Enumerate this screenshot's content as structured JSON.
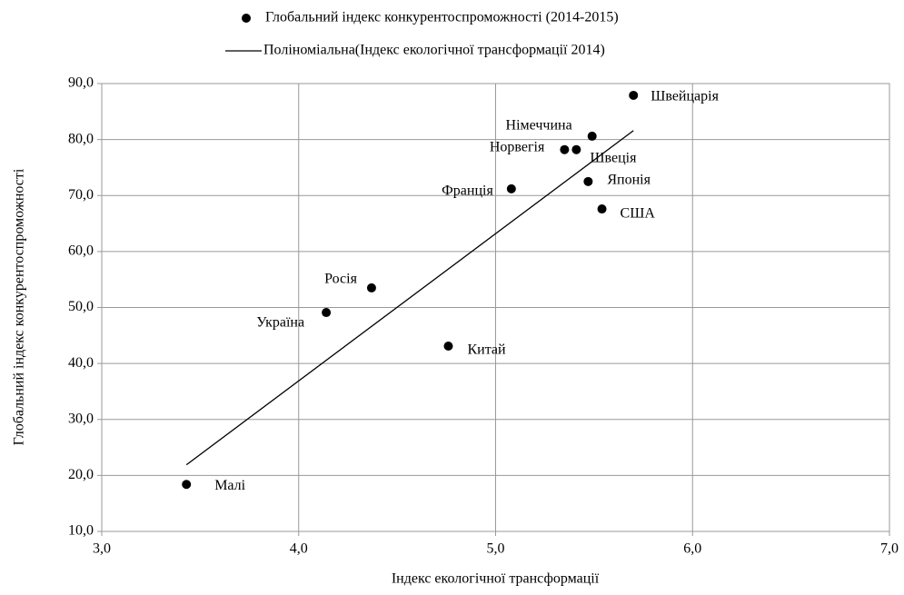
{
  "chart_data": {
    "type": "scatter",
    "xlabel": "Індекс екологічної трансформації",
    "ylabel": "Глобальний індекс конкурентоспроможності",
    "series": [
      {
        "name": "Глобальний індекс конкурентоспроможності (2014-2015)",
        "type": "scatter",
        "color": "#000000",
        "labels": [
          "Малі",
          "Україна",
          "Росія",
          "Китай",
          "Франція",
          "Норвегія",
          "Швеція",
          "Німеччина",
          "Японія",
          "США",
          "Швейцарія"
        ],
        "x": [
          3.43,
          4.14,
          4.37,
          4.76,
          5.08,
          5.35,
          5.41,
          5.49,
          5.47,
          5.54,
          5.7
        ],
        "values": [
          18.4,
          49.1,
          53.5,
          43.1,
          71.2,
          78.2,
          78.2,
          80.6,
          72.5,
          67.6,
          87.9
        ]
      },
      {
        "name": "Поліноміальна(Індекс екологічної трансформації 2014)",
        "type": "line",
        "color": "#000000",
        "x": [
          3.43,
          5.7
        ],
        "values": [
          21.9,
          81.6
        ]
      }
    ],
    "xlim": [
      3,
      7
    ],
    "xticks": [
      {
        "value": 3,
        "label": "3,0"
      },
      {
        "value": 4,
        "label": "4,0"
      },
      {
        "value": 5,
        "label": "5,0"
      },
      {
        "value": 6,
        "label": "6,0"
      },
      {
        "value": 7,
        "label": "7,0"
      }
    ],
    "ylim": [
      10,
      90
    ],
    "yticks": [
      {
        "value": 10,
        "label": "10,0"
      },
      {
        "value": 20,
        "label": "20,0"
      },
      {
        "value": 30,
        "label": "30,0"
      },
      {
        "value": 40,
        "label": "40,0"
      },
      {
        "value": 50,
        "label": "50,0"
      },
      {
        "value": 60,
        "label": "60,0"
      },
      {
        "value": 70,
        "label": "70,0"
      },
      {
        "value": 80,
        "label": "80,0"
      },
      {
        "value": 90,
        "label": "90,0"
      }
    ],
    "grid": true,
    "legend": "top"
  }
}
